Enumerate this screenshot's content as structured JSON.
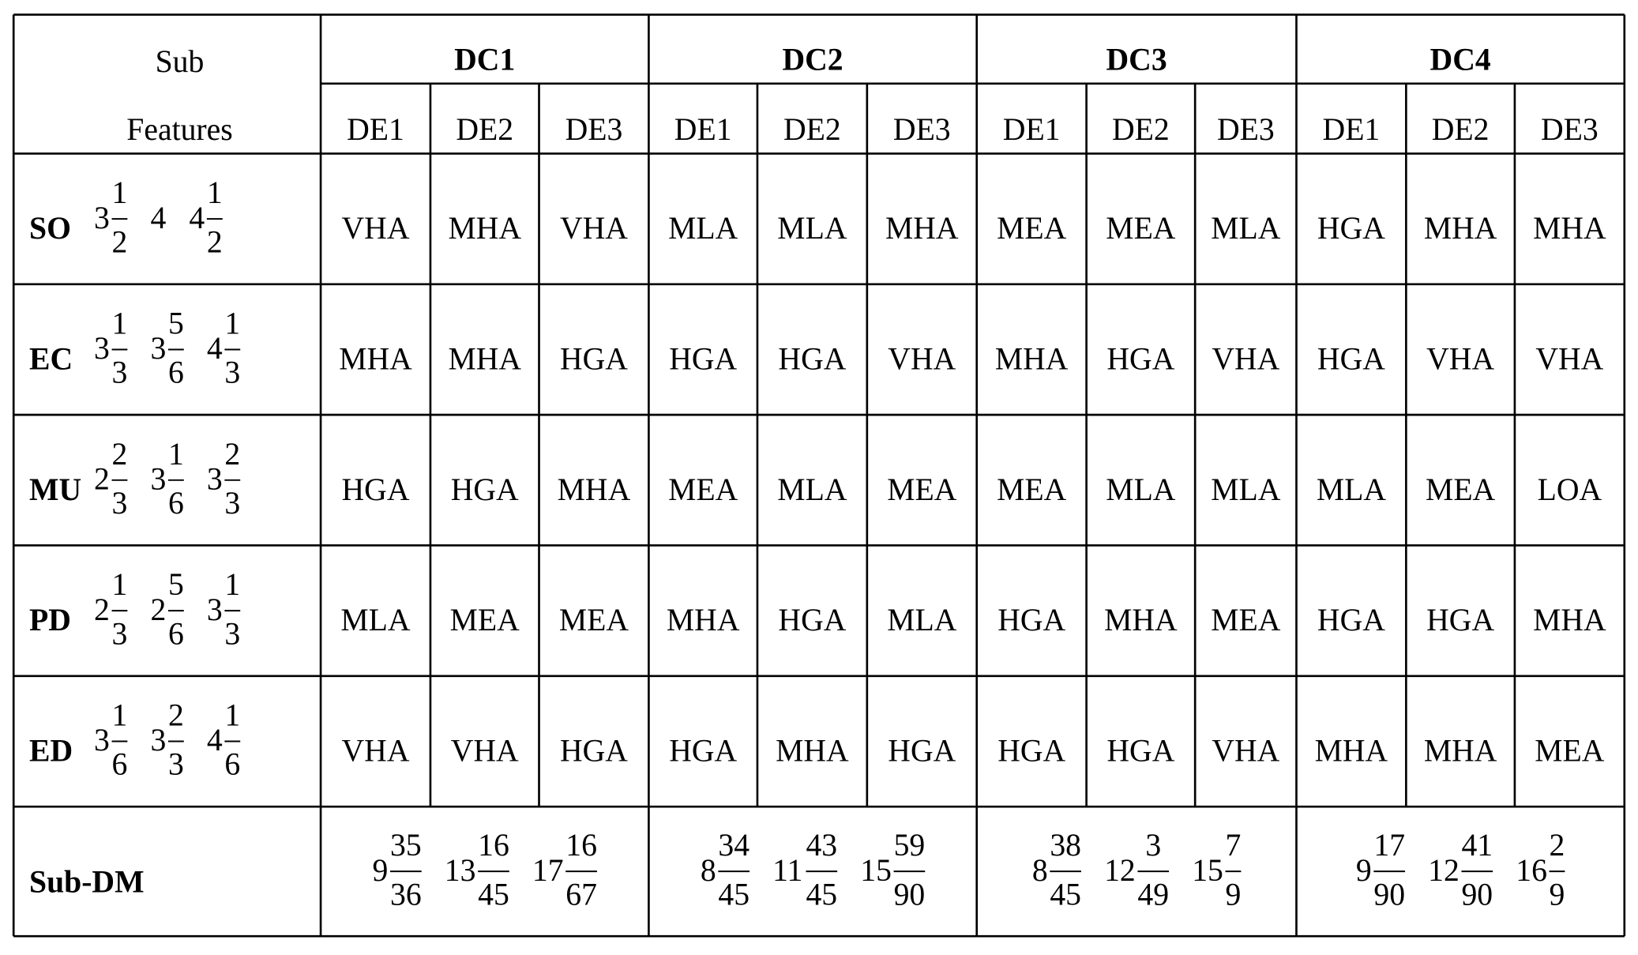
{
  "header": {
    "corner": [
      "Sub",
      "Features"
    ],
    "groups": [
      {
        "name": "DC1",
        "experts": [
          "DE1",
          "DE2",
          "DE3"
        ]
      },
      {
        "name": "DC2",
        "experts": [
          "DE1",
          "DE2",
          "DE3"
        ]
      },
      {
        "name": "DC3",
        "experts": [
          "DE1",
          "DE2",
          "DE3"
        ]
      },
      {
        "name": "DC4",
        "experts": [
          "DE1",
          "DE2",
          "DE3"
        ]
      }
    ]
  },
  "rows": [
    {
      "feature": "SO",
      "weights": [
        {
          "whole": "3",
          "num": "1",
          "den": "2"
        },
        {
          "whole": "4"
        },
        {
          "whole": "4",
          "num": "1",
          "den": "2"
        }
      ],
      "cells": [
        "VHA",
        "MHA",
        "VHA",
        "MLA",
        "MLA",
        "MHA",
        "MEA",
        "MEA",
        "MLA",
        "HGA",
        "MHA",
        "MHA"
      ]
    },
    {
      "feature": "EC",
      "weights": [
        {
          "whole": "3",
          "num": "1",
          "den": "3"
        },
        {
          "whole": "3",
          "num": "5",
          "den": "6"
        },
        {
          "whole": "4",
          "num": "1",
          "den": "3"
        }
      ],
      "cells": [
        "MHA",
        "MHA",
        "HGA",
        "HGA",
        "HGA",
        "VHA",
        "MHA",
        "HGA",
        "VHA",
        "HGA",
        "VHA",
        "VHA"
      ]
    },
    {
      "feature": "MU",
      "weights": [
        {
          "whole": "2",
          "num": "2",
          "den": "3"
        },
        {
          "whole": "3",
          "num": "1",
          "den": "6"
        },
        {
          "whole": "3",
          "num": "2",
          "den": "3"
        }
      ],
      "cells": [
        "HGA",
        "HGA",
        "MHA",
        "MEA",
        "MLA",
        "MEA",
        "MEA",
        "MLA",
        "MLA",
        "MLA",
        "MEA",
        "LOA"
      ]
    },
    {
      "feature": "PD",
      "weights": [
        {
          "whole": "2",
          "num": "1",
          "den": "3"
        },
        {
          "whole": "2",
          "num": "5",
          "den": "6"
        },
        {
          "whole": "3",
          "num": "1",
          "den": "3"
        }
      ],
      "cells": [
        "MLA",
        "MEA",
        "MEA",
        "MHA",
        "HGA",
        "MLA",
        "HGA",
        "MHA",
        "MEA",
        "HGA",
        "HGA",
        "MHA"
      ]
    },
    {
      "feature": "ED",
      "weights": [
        {
          "whole": "3",
          "num": "1",
          "den": "6"
        },
        {
          "whole": "3",
          "num": "2",
          "den": "3"
        },
        {
          "whole": "4",
          "num": "1",
          "den": "6"
        }
      ],
      "cells": [
        "VHA",
        "VHA",
        "HGA",
        "HGA",
        "MHA",
        "HGA",
        "HGA",
        "HGA",
        "VHA",
        "MHA",
        "MHA",
        "MEA"
      ]
    }
  ],
  "summary": {
    "label": "Sub-DM",
    "groups": [
      [
        {
          "whole": "9",
          "num": "35",
          "den": "36"
        },
        {
          "whole": "13",
          "num": "16",
          "den": "45"
        },
        {
          "whole": "17",
          "num": "16",
          "den": "67"
        }
      ],
      [
        {
          "whole": "8",
          "num": "34",
          "den": "45"
        },
        {
          "whole": "11",
          "num": "43",
          "den": "45"
        },
        {
          "whole": "15",
          "num": "59",
          "den": "90"
        }
      ],
      [
        {
          "whole": "8",
          "num": "38",
          "den": "45"
        },
        {
          "whole": "12",
          "num": "3",
          "den": "49"
        },
        {
          "whole": "15",
          "num": "7",
          "den": "9"
        }
      ],
      [
        {
          "whole": "9",
          "num": "17",
          "den": "90"
        },
        {
          "whole": "12",
          "num": "41",
          "den": "90"
        },
        {
          "whole": "16",
          "num": "2",
          "den": "9"
        }
      ]
    ]
  }
}
